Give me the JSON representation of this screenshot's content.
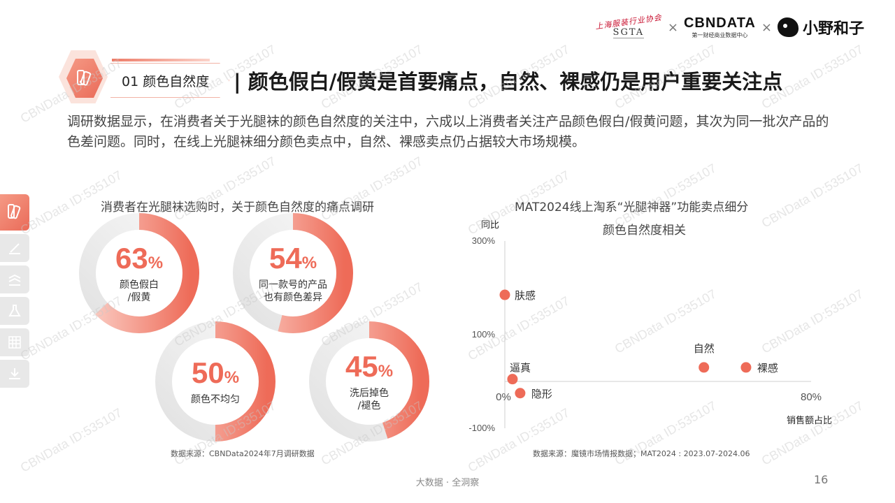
{
  "header": {
    "logos": {
      "sgta_script": "上海服装行业协会",
      "sgta_mark": "SGTA",
      "cbndata_main": "CBNDATA",
      "cbndata_sub": "第一财经商业数据中心",
      "brand": "小野和子",
      "separator": "×"
    },
    "section_label": "01  颜色自然度",
    "headline": "| 颜色假白/假黄是首要痛点，自然、裸感仍是用户重要关注点"
  },
  "intro": "调研数据显示，在消费者关于光腿袜的颜色自然度的关注中，六成以上消费者关注产品颜色假白/假黄问题，其次为同一批次产品的色差问题。同时，在线上光腿袜细分颜色卖点中，自然、裸感卖点仍占据较大市场规模。",
  "left_panel": {
    "title": "消费者在光腿袜选购时，关于颜色自然度的痛点调研",
    "donuts": [
      {
        "value": "63",
        "unit": "%",
        "label": "颜色假白\n/假黄",
        "fraction": 0.63
      },
      {
        "value": "54",
        "unit": "%",
        "label": "同一款号的产品\n也有颜色差异",
        "fraction": 0.54
      },
      {
        "value": "50",
        "unit": "%",
        "label": "颜色不均匀",
        "fraction": 0.5
      },
      {
        "value": "45",
        "unit": "%",
        "label": "洗后掉色\n/褪色",
        "fraction": 0.45
      }
    ],
    "source": "数据来源：CBNData2024年7月调研数据"
  },
  "chart_data": [
    {
      "type": "pie",
      "title": "消费者在光腿袜选购时，关于颜色自然度的痛点调研",
      "categories": [
        "颜色假白/假黄",
        "同一款号的产品也有颜色差异",
        "颜色不均匀",
        "洗后掉色/褪色"
      ],
      "values": [
        63,
        54,
        50,
        45
      ],
      "unit": "%"
    },
    {
      "type": "scatter",
      "title": "MAT2024线上淘系“光腿神器”功能卖点细分",
      "subtitle": "颜色自然度相关",
      "xlabel": "销售额占比",
      "ylabel": "同比",
      "xlim": [
        0,
        80
      ],
      "ylim": [
        -100,
        300
      ],
      "x_ticks": [
        "0%",
        "80%"
      ],
      "y_ticks": [
        "300%",
        "100%",
        "-100%"
      ],
      "points": [
        {
          "name": "肤感",
          "x": 0,
          "y": 185
        },
        {
          "name": "逼真",
          "x": 2,
          "y": 5
        },
        {
          "name": "隐形",
          "x": 4,
          "y": -25
        },
        {
          "name": "自然",
          "x": 52,
          "y": 30
        },
        {
          "name": "裸感",
          "x": 63,
          "y": 30
        }
      ],
      "point_color": "#ee6b58"
    }
  ],
  "right_panel": {
    "source": "数据来源：魔镜市场情报数据；MAT2024 : 2023.07-2024.06"
  },
  "footer": {
    "center": "大数据 · 全洞察",
    "page": "16"
  },
  "watermark": "CBNData ID:535107",
  "colors": {
    "accent": "#ee6b58",
    "track": "#e6e6e6"
  }
}
